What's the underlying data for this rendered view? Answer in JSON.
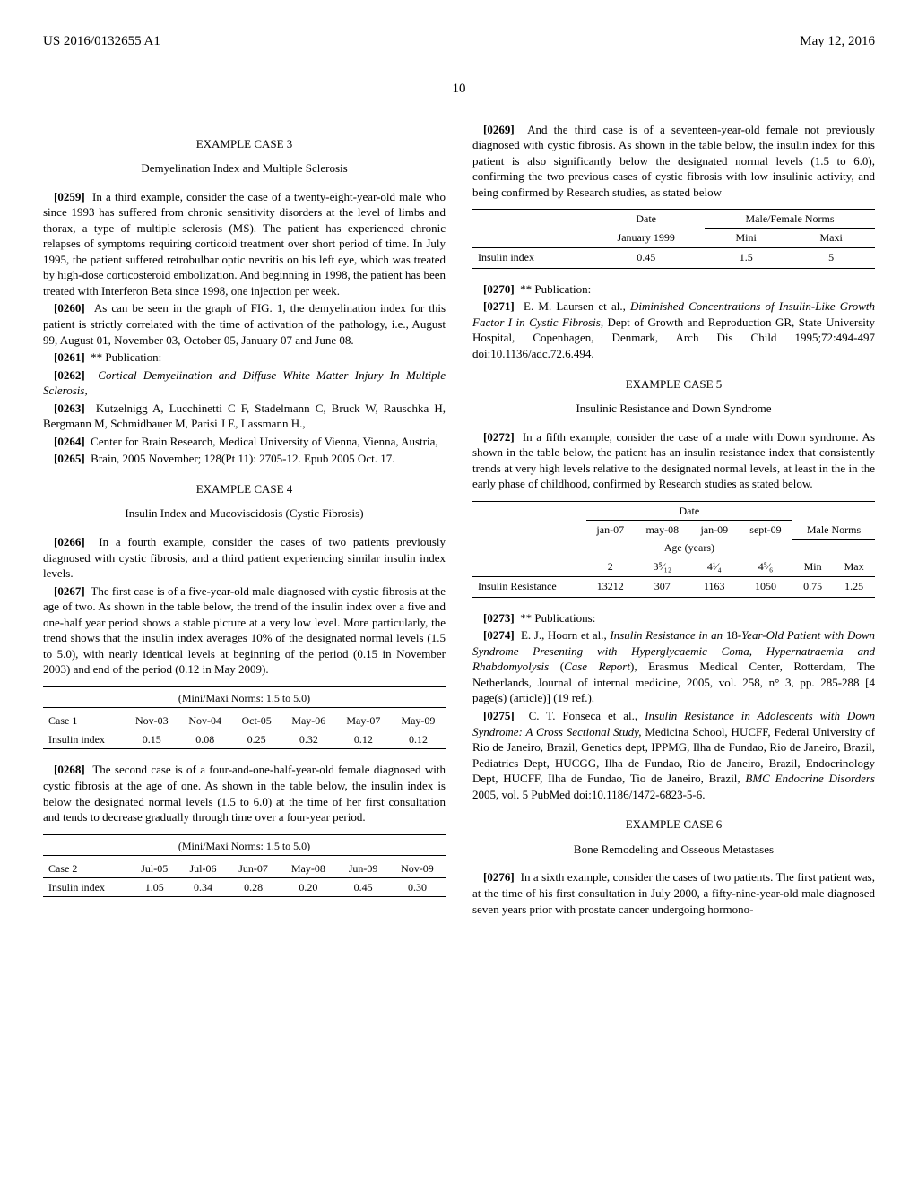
{
  "header": {
    "pub_id": "US 2016/0132655 A1",
    "pub_date": "May 12, 2016",
    "page_num": "10"
  },
  "left": {
    "case3_head": "EXAMPLE CASE 3",
    "case3_sub": "Demyelination Index and Multiple Sclerosis",
    "p0259_num": "[0259]",
    "p0259": "In a third example, consider the case of a twenty-eight-year-old male who since 1993 has suffered from chronic sensitivity disorders at the level of limbs and thorax, a type of multiple sclerosis (MS). The patient has experienced chronic relapses of symptoms requiring corticoid treatment over short period of time. In July 1995, the patient suffered retrobulbar optic nevritis on his left eye, which was treated by high-dose corticosteroid embolization. And beginning in 1998, the patient has been treated with Interferon Beta since 1998, one injection per week.",
    "p0260_num": "[0260]",
    "p0260": "As can be seen in the graph of FIG. 1, the demyelination index for this patient is strictly correlated with the time of activation of the pathology, i.e., August 99, August 01, November 03, October 05, January 07 and June 08.",
    "p0261_num": "[0261]",
    "p0261": "** Publication:",
    "p0262_num": "[0262]",
    "p0262": "Cortical Demyelination and Diffuse White Matter Injury In Multiple Sclerosis,",
    "p0263_num": "[0263]",
    "p0263": "Kutzelnigg A, Lucchinetti C F, Stadelmann C, Bruck W, Rauschka H, Bergmann M, Schmidbauer M, Parisi J E, Lassmann H.,",
    "p0264_num": "[0264]",
    "p0264": "Center for Brain Research, Medical University of Vienna, Vienna, Austria,",
    "p0265_num": "[0265]",
    "p0265": "Brain, 2005 November; 128(Pt 11): 2705-12. Epub 2005 Oct. 17.",
    "case4_head": "EXAMPLE CASE 4",
    "case4_sub": "Insulin Index and Mucoviscidosis (Cystic Fibrosis)",
    "p0266_num": "[0266]",
    "p0266": "In a fourth example, consider the cases of two patients previously diagnosed with cystic fibrosis, and a third patient experiencing similar insulin index levels.",
    "p0267_num": "[0267]",
    "p0267": "The first case is of a five-year-old male diagnosed with cystic fibrosis at the age of two. As shown in the table below, the trend of the insulin index over a five and one-half year period shows a stable picture at a very low level. More particularly, the trend shows that the insulin index averages 10% of the designated normal levels (1.5 to 5.0), with nearly identical levels at beginning of the period (0.15 in November 2003) and end of the period (0.12 in May 2009).",
    "table1": {
      "caption": "(Mini/Maxi Norms: 1.5 to 5.0)",
      "head_row": [
        "Case 1",
        "Nov-03",
        "Nov-04",
        "Oct-05",
        "May-06",
        "May-07",
        "May-09"
      ],
      "data_row": [
        "Insulin index",
        "0.15",
        "0.08",
        "0.25",
        "0.32",
        "0.12",
        "0.12"
      ]
    },
    "p0268_num": "[0268]",
    "p0268": "The second case is of a four-and-one-half-year-old female diagnosed with cystic fibrosis at the age of one. As shown in the table below, the insulin index is below the designated normal levels (1.5 to 6.0) at the time of her first consultation and tends to decrease gradually through time over a four-year period.",
    "table2": {
      "caption": "(Mini/Maxi Norms: 1.5 to 5.0)",
      "head_row": [
        "Case 2",
        "Jul-05",
        "Jul-06",
        "Jun-07",
        "May-08",
        "Jun-09",
        "Nov-09"
      ],
      "data_row": [
        "Insulin index",
        "1.05",
        "0.34",
        "0.28",
        "0.20",
        "0.45",
        "0.30"
      ]
    }
  },
  "right": {
    "p0269_num": "[0269]",
    "p0269": "And the third case is of a seventeen-year-old female not previously diagnosed with cystic fibrosis. As shown in the table below, the insulin index for this patient is also significantly below the designated normal levels (1.5 to 6.0), confirming the two previous cases of cystic fibrosis with low insulinic activity, and being confirmed by Research studies, as stated below",
    "table3": {
      "h1": [
        "",
        "Date",
        "Male/Female Norms"
      ],
      "h2": [
        "",
        "January 1999",
        "Mini",
        "Maxi"
      ],
      "row": [
        "Insulin index",
        "0.45",
        "1.5",
        "5"
      ]
    },
    "p0270_num": "[0270]",
    "p0270": "** Publication:",
    "p0271_num": "[0271]",
    "p0271a": "E. M. Laursen et al., ",
    "p0271i": "Diminished Concentrations of Insulin-Like Growth Factor I in Cystic Fibrosis,",
    "p0271b": " Dept of Growth and Reproduction GR, State University Hospital, Copenhagen, Denmark, Arch Dis Child 1995;72:494-497 doi:10.1136/adc.72.6.494.",
    "case5_head": "EXAMPLE CASE 5",
    "case5_sub": "Insulinic Resistance and Down Syndrome",
    "p0272_num": "[0272]",
    "p0272": "In a fifth example, consider the case of a male with Down syndrome. As shown in the table below, the patient has an insulin resistance index that consistently trends at very high levels relative to the designated normal levels, at least in the in the early phase of childhood, confirmed by Research studies as stated below.",
    "table4": {
      "h1_date": "Date",
      "h2": [
        "",
        "jan-07",
        "may-08",
        "jan-09",
        "sept-09",
        "Male Norms"
      ],
      "h2b": "Age (years)",
      "h3": [
        "",
        "2",
        "3⁵⁄₁₂",
        "4¹⁄₄",
        "4⁵⁄₆",
        "Min",
        "Max"
      ],
      "row": [
        "Insulin Resistance",
        "13212",
        "307",
        "1163",
        "1050",
        "0.75",
        "1.25"
      ]
    },
    "p0273_num": "[0273]",
    "p0273": "** Publications:",
    "p0274_num": "[0274]",
    "p0274a": "E. J., Hoorn et al., ",
    "p0274i": "Insulin Resistance in an ",
    "p0274n": "18",
    "p0274i2": "-Year-Old Patient with Down Syndrome Presenting with Hyperglycaemic Coma, Hypernatraemia and Rhabdomyolysis",
    "p0274p": " (",
    "p0274i3": "Case Report",
    "p0274b": "), Erasmus Medical Center, Rotterdam, The Netherlands, Journal of internal medicine, 2005, vol. 258, n° 3, pp. 285-288 [4 page(s) (article)] (19 ref.).",
    "p0275_num": "[0275]",
    "p0275a": "C. T. Fonseca et al., ",
    "p0275i": "Insulin Resistance in Adolescents with Down Syndrome: A Cross Sectional Study,",
    "p0275b": " Medicina School, HUCFF, Federal University of Rio de Janeiro, Brazil, Genetics dept, IPPMG, Ilha de Fundao, Rio de Janeiro, Brazil, Pediatrics Dept, HUCGG, Ilha de Fundao, Rio de Janeiro, Brazil, Endocrinology Dept, HUCFF, Ilha de Fundao, Tio de Janeiro, Brazil, ",
    "p0275i2": "BMC Endocrine Disorders",
    "p0275c": " 2005, vol. 5 PubMed doi:10.1186/1472-6823-5-6.",
    "case6_head": "EXAMPLE CASE 6",
    "case6_sub": "Bone Remodeling and Osseous Metastases",
    "p0276_num": "[0276]",
    "p0276": "In a sixth example, consider the cases of two patients. The first patient was, at the time of his first consultation in July 2000, a fifty-nine-year-old male diagnosed seven years prior with prostate cancer undergoing hormono-"
  }
}
